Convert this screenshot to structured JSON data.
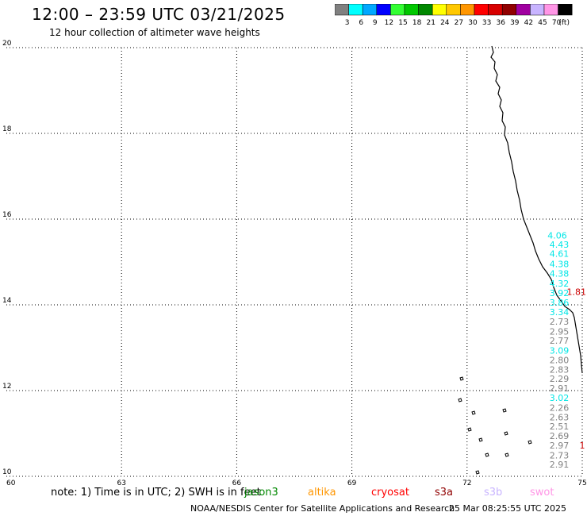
{
  "header": {
    "title": "12:00 – 23:59 UTC 03/21/2025",
    "subtitle": "12 hour collection of altimeter wave heights"
  },
  "colorbar": {
    "unit": "(ft)",
    "bins": [
      {
        "color": "#808080",
        "label": "3"
      },
      {
        "color": "#00ffff",
        "label": "6"
      },
      {
        "color": "#00a8ff",
        "label": "9"
      },
      {
        "color": "#0000ff",
        "label": "12"
      },
      {
        "color": "#33ff33",
        "label": "15"
      },
      {
        "color": "#00c800",
        "label": "18"
      },
      {
        "color": "#008800",
        "label": "21"
      },
      {
        "color": "#ffff00",
        "label": "24"
      },
      {
        "color": "#ffc800",
        "label": "27"
      },
      {
        "color": "#ff9600",
        "label": "30"
      },
      {
        "color": "#ff0000",
        "label": "33"
      },
      {
        "color": "#d80000",
        "label": "36"
      },
      {
        "color": "#900000",
        "label": "39"
      },
      {
        "color": "#a000a0",
        "label": "42"
      },
      {
        "color": "#c8b4ff",
        "label": "45"
      },
      {
        "color": "#ff96e6",
        "label": "70"
      },
      {
        "color": "#000000",
        "label": ""
      }
    ]
  },
  "axes": {
    "x_ticks": [
      "60",
      "63",
      "66",
      "69",
      "72",
      "75"
    ],
    "y_ticks": [
      "20",
      "18",
      "16",
      "14",
      "12",
      "10"
    ]
  },
  "chart_data": {
    "type": "scatter",
    "xlim": [
      60,
      75
    ],
    "ylim": [
      10,
      20
    ],
    "grid": true,
    "points": [
      {
        "lon": 74.35,
        "lat": 15.55,
        "value": "4.06",
        "color": "#00e6e6"
      },
      {
        "lon": 74.4,
        "lat": 15.33,
        "value": "4.43",
        "color": "#00e6e6"
      },
      {
        "lon": 74.4,
        "lat": 15.12,
        "value": "4.61",
        "color": "#00e6e6"
      },
      {
        "lon": 74.4,
        "lat": 14.88,
        "value": "4.38",
        "color": "#00e6e6"
      },
      {
        "lon": 74.4,
        "lat": 14.66,
        "value": "4.38",
        "color": "#00e6e6"
      },
      {
        "lon": 74.4,
        "lat": 14.43,
        "value": "4.32",
        "color": "#00e6e6"
      },
      {
        "lon": 74.4,
        "lat": 14.2,
        "value": "3.92",
        "color": "#00e6e6"
      },
      {
        "lon": 74.4,
        "lat": 13.98,
        "value": "3.86",
        "color": "#00e6e6"
      },
      {
        "lon": 74.4,
        "lat": 13.76,
        "value": "3.34",
        "color": "#00e6e6"
      },
      {
        "lon": 74.4,
        "lat": 13.54,
        "value": "2.73",
        "color": "#808080"
      },
      {
        "lon": 74.4,
        "lat": 13.31,
        "value": "2.95",
        "color": "#808080"
      },
      {
        "lon": 74.4,
        "lat": 13.09,
        "value": "2.77",
        "color": "#808080"
      },
      {
        "lon": 74.4,
        "lat": 12.86,
        "value": "3.09",
        "color": "#00e6e6"
      },
      {
        "lon": 74.4,
        "lat": 12.64,
        "value": "2.80",
        "color": "#808080"
      },
      {
        "lon": 74.4,
        "lat": 12.42,
        "value": "2.83",
        "color": "#808080"
      },
      {
        "lon": 74.4,
        "lat": 12.2,
        "value": "2.29",
        "color": "#808080"
      },
      {
        "lon": 74.4,
        "lat": 11.98,
        "value": "2.91",
        "color": "#808080"
      },
      {
        "lon": 74.4,
        "lat": 11.76,
        "value": "3.02",
        "color": "#00e6e6"
      },
      {
        "lon": 74.4,
        "lat": 11.53,
        "value": "2.26",
        "color": "#808080"
      },
      {
        "lon": 74.4,
        "lat": 11.31,
        "value": "2.63",
        "color": "#808080"
      },
      {
        "lon": 74.4,
        "lat": 11.09,
        "value": "2.51",
        "color": "#808080"
      },
      {
        "lon": 74.4,
        "lat": 10.87,
        "value": "2.69",
        "color": "#808080"
      },
      {
        "lon": 74.4,
        "lat": 10.65,
        "value": "2.97",
        "color": "#808080"
      },
      {
        "lon": 74.4,
        "lat": 10.42,
        "value": "2.73",
        "color": "#808080"
      },
      {
        "lon": 74.4,
        "lat": 10.2,
        "value": "2.91",
        "color": "#808080"
      },
      {
        "lon": 74.85,
        "lat": 14.23,
        "value": "1.81",
        "color": "#cc0000"
      },
      {
        "lon": 75.0,
        "lat": 10.65,
        "value": "1",
        "color": "#cc0000"
      }
    ]
  },
  "footer": {
    "note": "note: 1) Time is in UTC; 2) SWH is in feet",
    "satellites": [
      {
        "name": "jason3",
        "color": "#008800"
      },
      {
        "name": "altika",
        "color": "#ff9600"
      },
      {
        "name": "cryosat",
        "color": "#ff0000"
      },
      {
        "name": "s3a",
        "color": "#900000"
      },
      {
        "name": "s3b",
        "color": "#c8b4ff"
      },
      {
        "name": "swot",
        "color": "#ff96e6"
      }
    ],
    "credit": "NOAA/NESDIS Center for Satellite Applications and Research",
    "timestamp": "25 Mar 08:25:55 UTC 2025"
  }
}
